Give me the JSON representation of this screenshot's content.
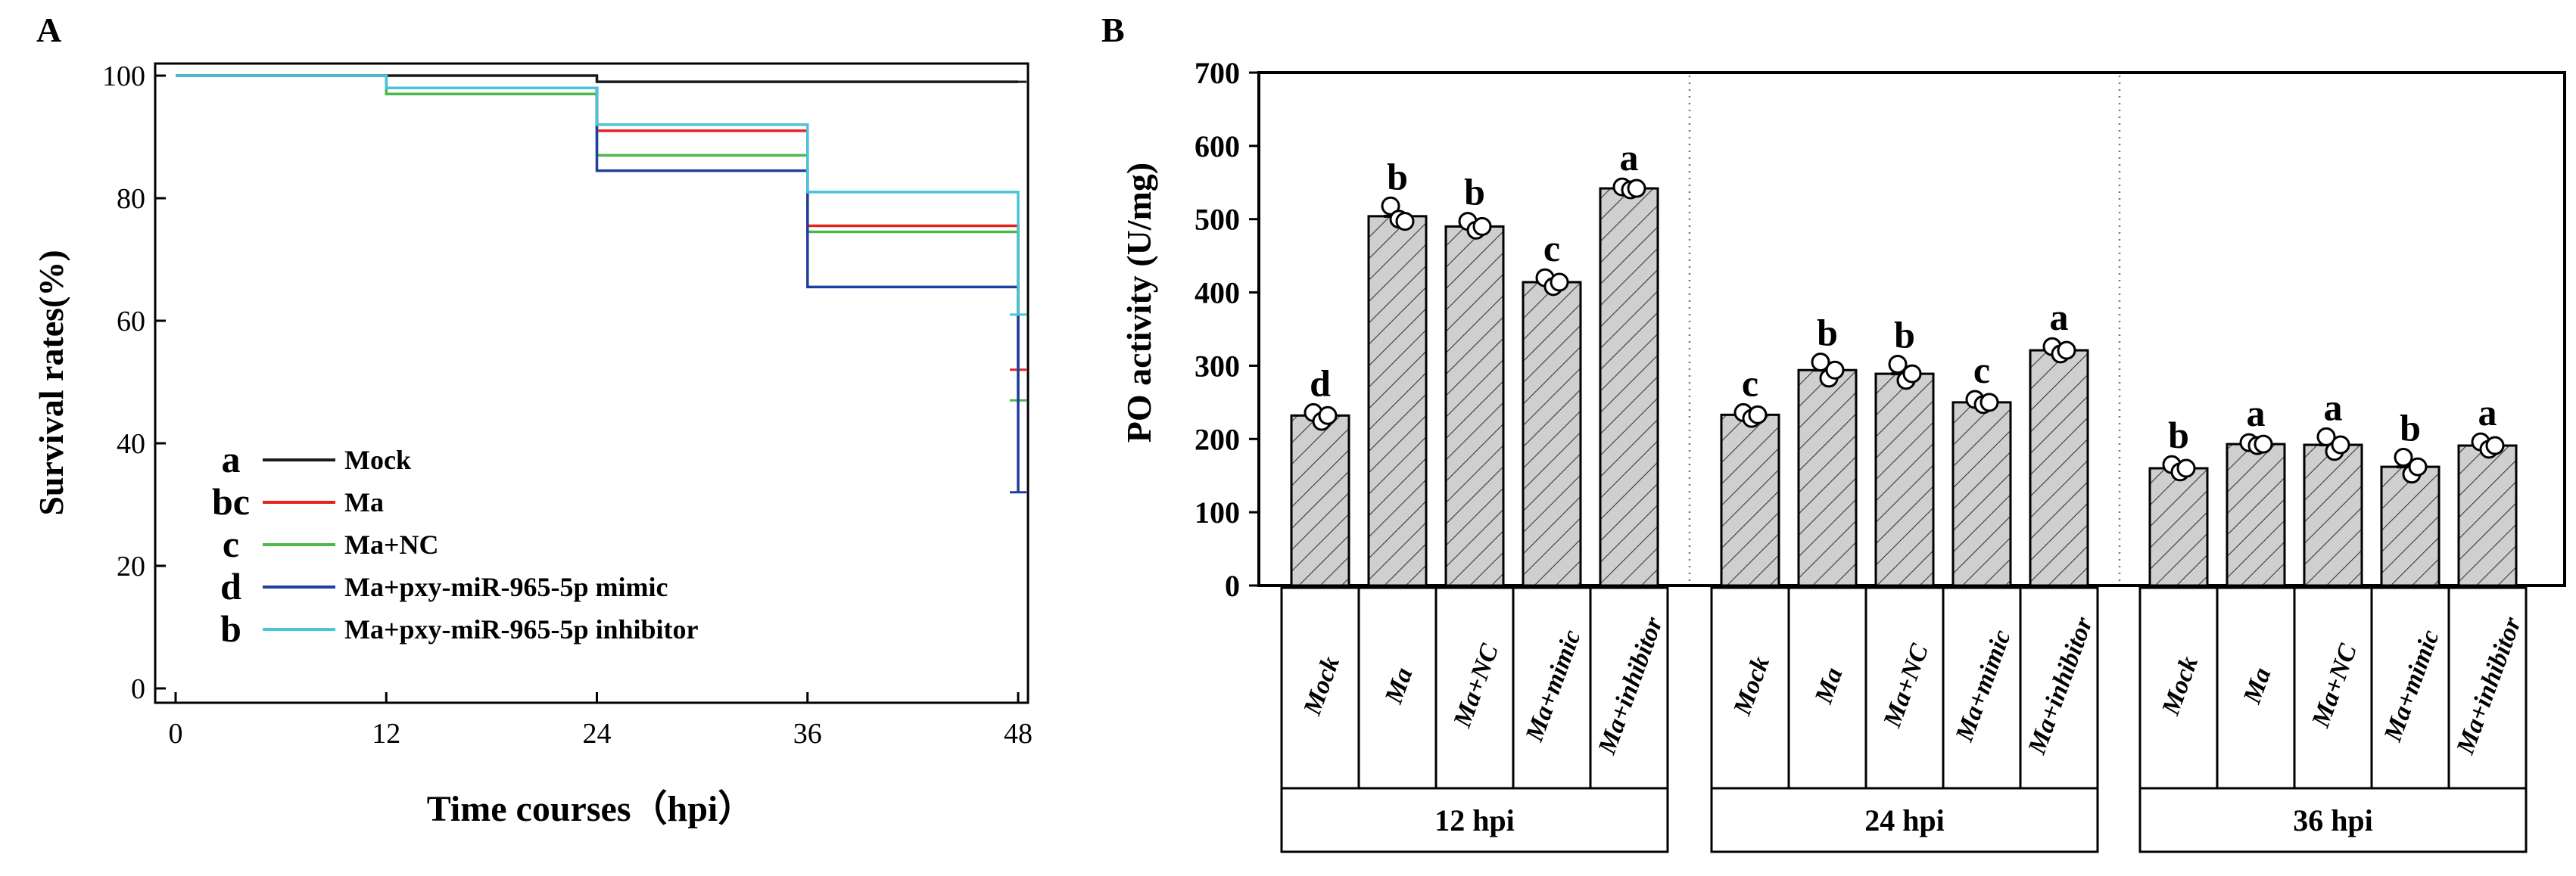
{
  "chart_data": [
    {
      "type": "line",
      "subtype": "kaplan-meier survival",
      "panel_label": "A",
      "title": "",
      "xlabel": "Time courses（hpi）",
      "ylabel": "Survival rates(%)",
      "xlim": [
        0,
        48
      ],
      "ylim": [
        0,
        100
      ],
      "xticks": [
        "0",
        "12",
        "24",
        "36",
        "48"
      ],
      "yticks": [
        "0",
        "20",
        "40",
        "60",
        "80",
        "100"
      ],
      "legend_position": "bottom-left",
      "series": [
        {
          "name": "Mock",
          "significance": "a",
          "color": "#1a1a1a",
          "steps": [
            [
              0,
              100
            ],
            [
              24,
              100
            ],
            [
              24,
              99
            ],
            [
              48,
              99
            ]
          ],
          "censor": [
            48,
            99
          ]
        },
        {
          "name": "Ma",
          "significance": "bc",
          "color": "#e8211f",
          "steps": [
            [
              0,
              100
            ],
            [
              12,
              100
            ],
            [
              12,
              98
            ],
            [
              24,
              98
            ],
            [
              24,
              91
            ],
            [
              36,
              91
            ],
            [
              36,
              75.5
            ],
            [
              48,
              75.5
            ],
            [
              48,
              52
            ]
          ],
          "censor": [
            48,
            52
          ]
        },
        {
          "name": "Ma+NC",
          "significance": "c",
          "color": "#4db848",
          "steps": [
            [
              0,
              100
            ],
            [
              12,
              100
            ],
            [
              12,
              97
            ],
            [
              24,
              97
            ],
            [
              24,
              87
            ],
            [
              36,
              87
            ],
            [
              36,
              74.5
            ],
            [
              48,
              74.5
            ],
            [
              48,
              47
            ]
          ],
          "censor": [
            48,
            47
          ]
        },
        {
          "name": "Ma+pxy-miR-965-5p mimic",
          "significance": "d",
          "color": "#1f3f9e",
          "steps": [
            [
              0,
              100
            ],
            [
              12,
              100
            ],
            [
              12,
              98
            ],
            [
              24,
              98
            ],
            [
              24,
              84.5
            ],
            [
              36,
              84.5
            ],
            [
              36,
              65.5
            ],
            [
              48,
              65.5
            ],
            [
              48,
              32
            ]
          ],
          "censor": [
            48,
            32
          ]
        },
        {
          "name": "Ma+pxy-miR-965-5p inhibitor",
          "significance": "b",
          "color": "#49c4d9",
          "steps": [
            [
              0,
              100
            ],
            [
              12,
              100
            ],
            [
              12,
              98
            ],
            [
              24,
              98
            ],
            [
              24,
              92
            ],
            [
              36,
              92
            ],
            [
              36,
              81
            ],
            [
              48,
              81
            ],
            [
              48,
              61
            ]
          ],
          "censor": [
            48,
            61
          ]
        }
      ]
    },
    {
      "type": "bar",
      "panel_label": "B",
      "title": "",
      "ylabel": "PO activity (U/mg)",
      "ylim": [
        0,
        700
      ],
      "yticks": [
        "0",
        "100",
        "200",
        "300",
        "400",
        "500",
        "600",
        "700"
      ],
      "groups": [
        {
          "label": "12 hpi",
          "categories": [
            "Mock",
            "Ma",
            "Ma+NC",
            "Ma+mimic",
            "Ma+inhibitor"
          ],
          "values": [
            232,
            504,
            490,
            414,
            542
          ],
          "letters": [
            "d",
            "b",
            "b",
            "c",
            "a"
          ],
          "points": [
            [
              236,
              224,
              232
            ],
            [
              518,
              500,
              497
            ],
            [
              497,
              485,
              490
            ],
            [
              420,
              408,
              414
            ],
            [
              544,
              540,
              542
            ]
          ]
        },
        {
          "label": "24 hpi",
          "categories": [
            "Mock",
            "Ma",
            "Ma+NC",
            "Ma+mimic",
            "Ma+inhibitor"
          ],
          "values": [
            233,
            294,
            289,
            250,
            321
          ],
          "letters": [
            "c",
            "b",
            "b",
            "c",
            "a"
          ],
          "points": [
            [
              236,
              228,
              233
            ],
            [
              305,
              283,
              294
            ],
            [
              302,
              280,
              289
            ],
            [
              254,
              247,
              250
            ],
            [
              326,
              316,
              321
            ]
          ]
        },
        {
          "label": "36 hpi",
          "categories": [
            "Mock",
            "Ma",
            "Ma+NC",
            "Ma+mimic",
            "Ma+inhibitor"
          ],
          "values": [
            160,
            193,
            192,
            162,
            191
          ],
          "letters": [
            "b",
            "a",
            "a",
            "b",
            "a"
          ],
          "points": [
            [
              165,
              155,
              160
            ],
            [
              195,
              191,
              193
            ],
            [
              203,
              183,
              192
            ],
            [
              175,
              152,
              162
            ],
            [
              196,
              186,
              191
            ]
          ]
        }
      ]
    }
  ]
}
